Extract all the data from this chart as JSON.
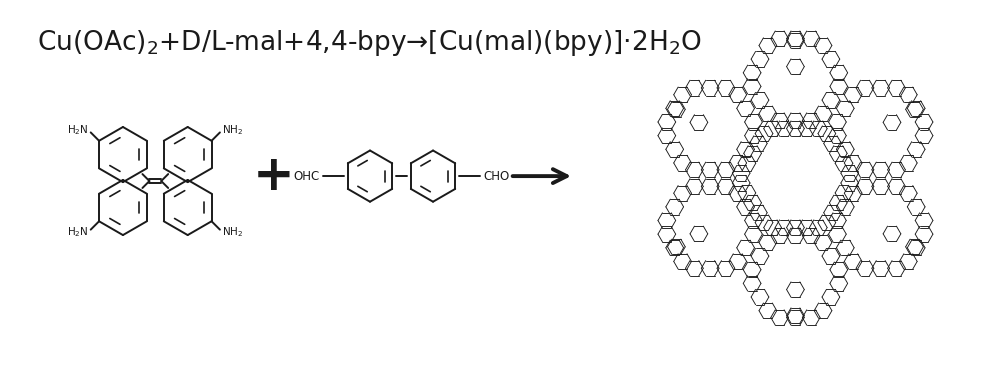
{
  "background_color": "#ffffff",
  "title_fontsize": 19,
  "fig_width": 10.0,
  "fig_height": 3.66,
  "text_color": "#1a1a1a",
  "lw_mol": 1.4,
  "lw_net": 0.65
}
